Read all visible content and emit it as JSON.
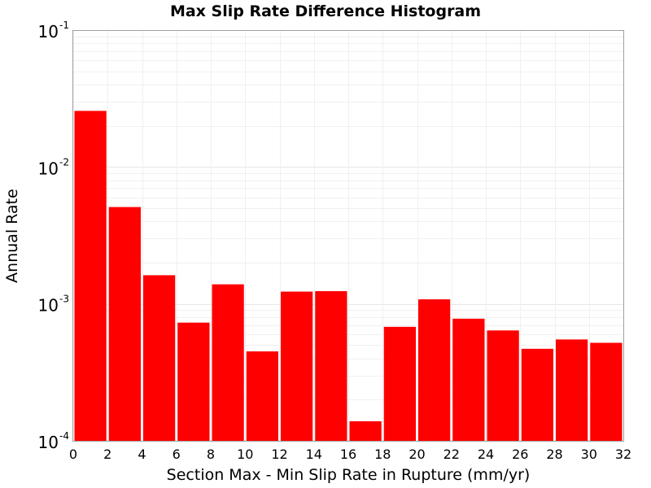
{
  "chart_data": {
    "type": "bar",
    "title": "Max Slip Rate Difference Histogram",
    "xlabel": "Section Max - Min Slip Rate in Rupture (mm/yr)",
    "ylabel": "Annual Rate",
    "xlim": [
      0,
      32
    ],
    "ylim": [
      0.0001,
      0.1
    ],
    "yscale": "log",
    "x_ticks": [
      0,
      2,
      4,
      6,
      8,
      10,
      12,
      14,
      16,
      18,
      20,
      22,
      24,
      26,
      28,
      30,
      32
    ],
    "y_ticks": [
      {
        "base": "10",
        "exp": "-1",
        "value": 0.1
      },
      {
        "base": "10",
        "exp": "-2",
        "value": 0.01
      },
      {
        "base": "10",
        "exp": "-3",
        "value": 0.001
      },
      {
        "base": "10",
        "exp": "-4",
        "value": 0.0001
      }
    ],
    "grid": true,
    "bin_width": 2,
    "bar_color": "#ff0000",
    "bins": [
      0,
      2,
      4,
      6,
      8,
      10,
      12,
      14,
      16,
      18,
      20,
      22,
      24,
      26,
      28,
      30
    ],
    "values": [
      0.0257,
      0.0051,
      0.00162,
      0.00073,
      0.00139,
      0.00045,
      0.00123,
      0.00124,
      0.000139,
      0.00068,
      0.00108,
      0.00078,
      0.00064,
      0.00047,
      0.00055,
      0.00052
    ]
  }
}
